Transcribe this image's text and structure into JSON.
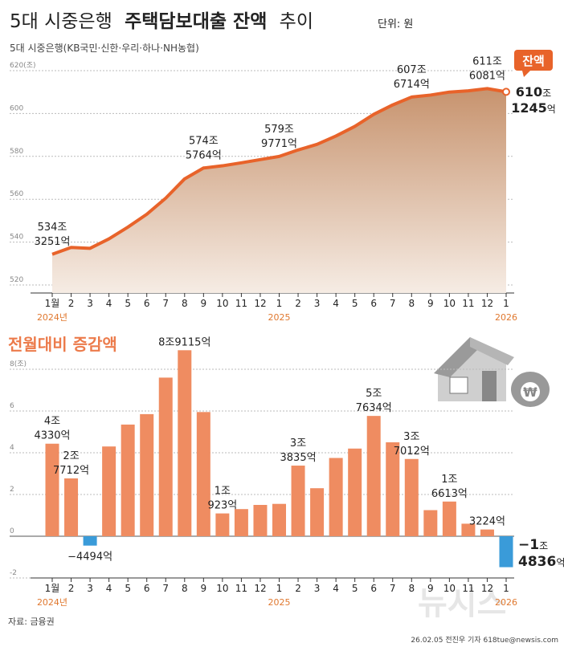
{
  "header": {
    "title": [
      "5대 시중은행",
      "주택담보대출 잔액",
      "추이"
    ],
    "unit": "단위: 원",
    "subtitle": "5대 시중은행(KB국민·신한·우리·하나·NH농협)"
  },
  "chart_data": [
    {
      "type": "area-line",
      "color": "#e8632a",
      "area_color": "#c7936e",
      "badge": "잔액",
      "categories": [
        "1월",
        "2",
        "3",
        "4",
        "5",
        "6",
        "7",
        "8",
        "9",
        "10",
        "11",
        "12",
        "1",
        "2",
        "3",
        "4",
        "5",
        "6",
        "7",
        "8",
        "9",
        "10",
        "11",
        "12",
        "1"
      ],
      "years": [
        "2024년",
        null,
        null,
        null,
        null,
        null,
        null,
        null,
        null,
        null,
        null,
        null,
        "2025",
        null,
        null,
        null,
        null,
        null,
        null,
        null,
        null,
        null,
        null,
        null,
        "2026"
      ],
      "values": [
        534.3251,
        537.5,
        537.1,
        541.5,
        547,
        553,
        560.5,
        569.5,
        574.5764,
        575.6,
        577,
        578.5,
        579.9771,
        583,
        585.6,
        589.5,
        594,
        599.6,
        604,
        607.6714,
        608.6,
        610,
        610.6,
        611.6081,
        610.1245
      ],
      "value_labels": [
        [
          "534조",
          "3251억"
        ],
        null,
        null,
        null,
        null,
        null,
        null,
        null,
        [
          "574조",
          "5764억"
        ],
        null,
        null,
        null,
        [
          "579조",
          "9771억"
        ],
        null,
        null,
        null,
        null,
        null,
        null,
        [
          "607조",
          "6714억"
        ],
        null,
        null,
        null,
        [
          "611조",
          "6081억"
        ],
        [
          "610조",
          "1245억"
        ]
      ],
      "ylim": [
        520,
        620
      ],
      "yticks": [
        520,
        540,
        560,
        580,
        600,
        {
          "value": 620,
          "label": "620(조)"
        }
      ],
      "grid": true
    },
    {
      "type": "bar",
      "title": "전월대비 증감액",
      "color": "#ef8c61",
      "negative_color": "#3a9bd9",
      "categories": [
        "1월",
        "2",
        "3",
        "4",
        "5",
        "6",
        "7",
        "8",
        "9",
        "10",
        "11",
        "12",
        "1",
        "2",
        "3",
        "4",
        "5",
        "6",
        "7",
        "8",
        "9",
        "10",
        "11",
        "12",
        "1"
      ],
      "years": [
        "2024년",
        null,
        null,
        null,
        null,
        null,
        null,
        null,
        null,
        null,
        null,
        null,
        "2025",
        null,
        null,
        null,
        null,
        null,
        null,
        null,
        null,
        null,
        null,
        null,
        "2026"
      ],
      "values": [
        4.433,
        2.7712,
        -0.4494,
        4.3,
        5.35,
        5.85,
        7.6,
        8.9115,
        5.95,
        1.0923,
        1.3,
        1.5,
        1.55,
        3.3835,
        2.3,
        3.75,
        4.2,
        5.7634,
        4.5,
        3.7012,
        1.25,
        1.6613,
        0.6,
        0.3224,
        -1.4836
      ],
      "value_labels": [
        [
          "4조",
          "4330억"
        ],
        [
          "2조",
          "7712억"
        ],
        [
          "−4494억"
        ],
        null,
        null,
        null,
        null,
        [
          "8조9115억"
        ],
        null,
        [
          "1조",
          "923억"
        ],
        null,
        null,
        null,
        [
          "3조",
          "3835억"
        ],
        null,
        null,
        null,
        [
          "5조",
          "7634억"
        ],
        null,
        [
          "3조",
          "7012억"
        ],
        null,
        [
          "1조",
          "6613억"
        ],
        null,
        [
          "3224억"
        ],
        [
          "−1조",
          "4836억"
        ]
      ],
      "ylim": [
        -2,
        9
      ],
      "yticks": [
        -2,
        0,
        2,
        4,
        6,
        {
          "value": 8,
          "label": "8(조)"
        }
      ],
      "grid": true
    }
  ],
  "footer": {
    "source": "자료: 금융권",
    "credit": "26.02.05 전진우 기자 618tue@newsis.com",
    "watermark": "뉴시스"
  }
}
